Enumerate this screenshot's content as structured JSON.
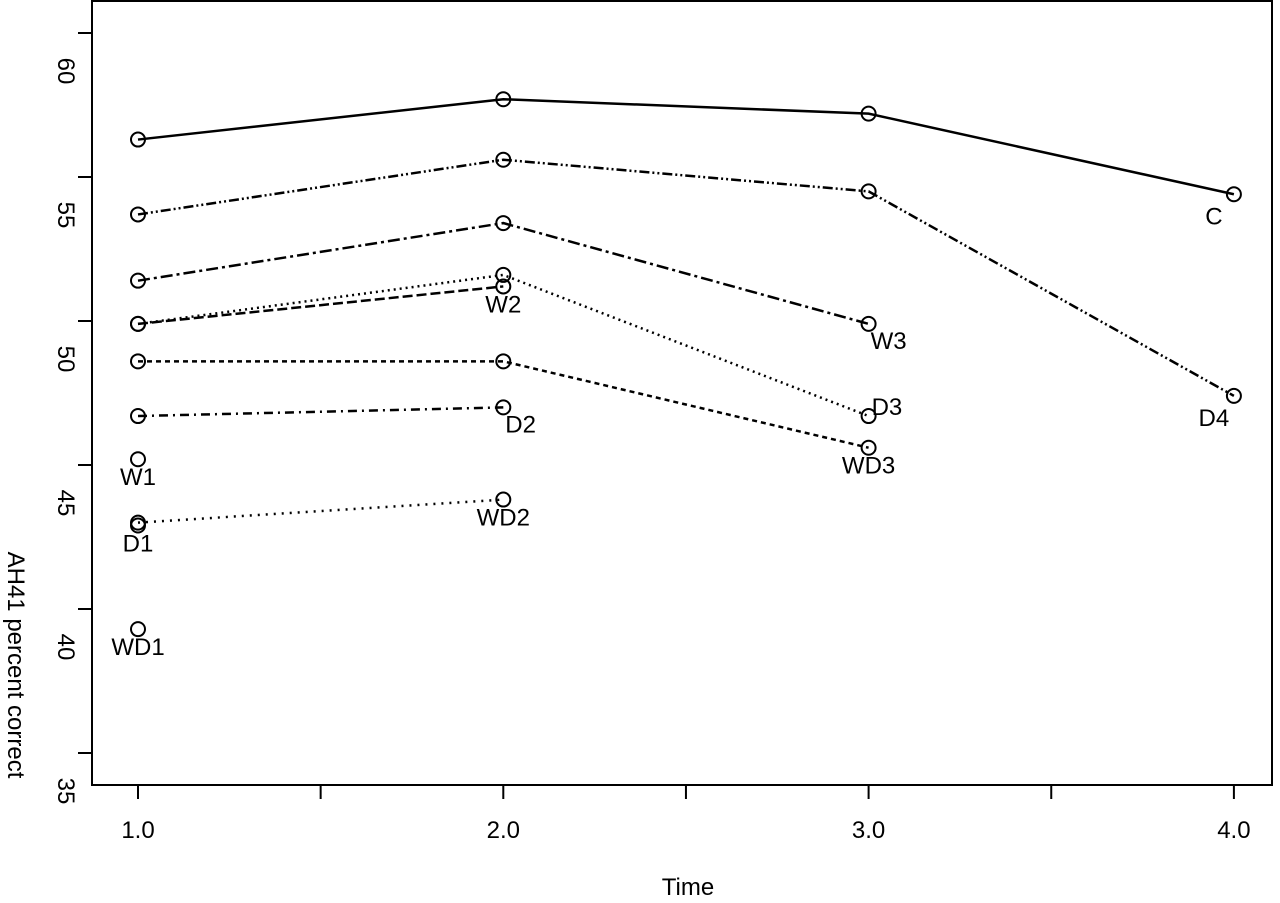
{
  "chart_data": {
    "type": "line",
    "title": "",
    "xlabel": "Time",
    "ylabel": "AH41 percent correct",
    "xlim": [
      0.95,
      4.05
    ],
    "ylim": [
      34.2,
      61.2
    ],
    "x_ticks": [
      1.0,
      1.5,
      2.0,
      2.5,
      3.0,
      3.5,
      4.0
    ],
    "x_tick_labels": [
      "1.0",
      "2.0",
      "3.0",
      "4.0"
    ],
    "x_tick_label_values": [
      1.0,
      2.0,
      3.0,
      4.0
    ],
    "y_ticks": [
      35,
      40,
      45,
      50,
      55,
      60
    ],
    "y_tick_labels": [
      "35",
      "40",
      "45",
      "50",
      "55",
      "60"
    ],
    "grid": false,
    "series": [
      {
        "name": "C",
        "dash": "",
        "x": [
          1,
          2,
          3,
          4
        ],
        "y": [
          56.3,
          57.7,
          57.2,
          54.4
        ],
        "label_at": 3,
        "label_pos": "below-left"
      },
      {
        "name": "D4",
        "dash": "10 3 2 3 2 3",
        "x": [
          1,
          2,
          3,
          4
        ],
        "y": [
          53.7,
          55.6,
          54.5,
          47.4
        ],
        "label_at": 3,
        "label_pos": "below-left"
      },
      {
        "name": "W3",
        "dash": "12 4 3 4",
        "x": [
          1,
          2,
          3
        ],
        "y": [
          51.4,
          53.4,
          49.9
        ],
        "label_at": 2,
        "label_pos": "below-right"
      },
      {
        "name": "D3",
        "dash": "2 4",
        "x": [
          1,
          2,
          3
        ],
        "y": [
          49.9,
          51.6,
          46.7
        ],
        "label_at": 2,
        "label_pos": "right"
      },
      {
        "name": "W2",
        "dash": "10 4",
        "x": [
          1,
          2
        ],
        "y": [
          49.9,
          51.2
        ],
        "label_at": 1,
        "label_pos": "below"
      },
      {
        "name": "WD3",
        "dash": "5 4",
        "x": [
          1,
          2,
          3
        ],
        "y": [
          48.6,
          48.6,
          45.6
        ],
        "label_at": 2,
        "label_pos": "below"
      },
      {
        "name": "D2",
        "dash": "9 5 2 5",
        "x": [
          1,
          2
        ],
        "y": [
          46.7,
          47.0
        ],
        "label_at": 1,
        "label_pos": "below-right"
      },
      {
        "name": "W1",
        "dash": "",
        "x": [
          1
        ],
        "y": [
          45.2
        ],
        "label_at": 0,
        "label_pos": "below"
      },
      {
        "name": "WD2",
        "dash": "2 6",
        "x": [
          1,
          2
        ],
        "y": [
          43.0,
          43.8
        ],
        "label_at": 1,
        "label_pos": "below"
      },
      {
        "name": "D1",
        "dash": "",
        "x": [
          1
        ],
        "y": [
          42.9
        ],
        "label_at": 0,
        "label_pos": "below"
      },
      {
        "name": "WD1",
        "dash": "",
        "x": [
          1
        ],
        "y": [
          39.3
        ],
        "label_at": 0,
        "label_pos": "below"
      }
    ]
  }
}
